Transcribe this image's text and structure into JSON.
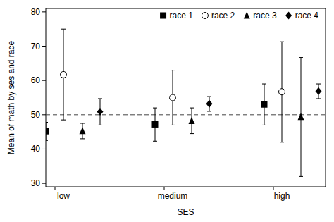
{
  "chart_data": {
    "type": "errorbar",
    "x_label": "SES",
    "y_label": "Mean of math by ses and race",
    "categories": [
      "low",
      "medium",
      "high"
    ],
    "ylim": [
      29,
      81
    ],
    "yticks": [
      30,
      40,
      50,
      60,
      70,
      80
    ],
    "hline": 50,
    "legend": "top-right",
    "series": [
      {
        "name": "race 1",
        "color": "#000000",
        "marker": "square",
        "values": [
          45.2,
          47.2,
          53
        ],
        "lower": [
          42.5,
          42.3,
          47
        ],
        "upper": [
          47.8,
          52,
          59
        ]
      },
      {
        "name": "race 2",
        "color": "#000000",
        "marker": "open-circle",
        "values": [
          61.7,
          55,
          56.7
        ],
        "lower": [
          48.5,
          47,
          42
        ],
        "upper": [
          75,
          63,
          71.3
        ]
      },
      {
        "name": "race 3",
        "color": "#000000",
        "marker": "triangle",
        "values": [
          45.3,
          48.2,
          49.4
        ],
        "lower": [
          43,
          44.5,
          32
        ],
        "upper": [
          47.5,
          52,
          66.7
        ]
      },
      {
        "name": "race 4",
        "color": "#000000",
        "marker": "diamond",
        "values": [
          50.9,
          53.2,
          56.9
        ],
        "lower": [
          47,
          51,
          54.7
        ],
        "upper": [
          54.7,
          55.3,
          59
        ]
      }
    ]
  }
}
